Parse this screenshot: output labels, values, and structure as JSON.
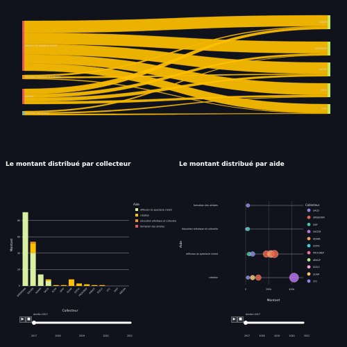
{
  "sankey": {
    "sources": [
      "diffusion du spectacle vivant",
      "éducation artistique et culturelle",
      "création",
      "formation des artistes"
    ],
    "source_colors": [
      "#e15759",
      "#f28e2b",
      "#e15759",
      "#76b7b2"
    ],
    "targets": [
      "ADAMI",
      "SPEDIDAM",
      "SACEM",
      "SACD",
      "SCPP"
    ],
    "target_colors": [
      "#c5e85d",
      "#c5e85d",
      "#c5e85d",
      "#c5e85d",
      "#c5e85d"
    ],
    "flows": [
      {
        "from": 0,
        "to": 0,
        "value": 30
      },
      {
        "from": 0,
        "to": 1,
        "value": 28
      },
      {
        "from": 0,
        "to": 2,
        "value": 26
      },
      {
        "from": 0,
        "to": 3,
        "value": 22
      },
      {
        "from": 0,
        "to": 4,
        "value": 18
      },
      {
        "from": 1,
        "to": 0,
        "value": 2
      },
      {
        "from": 1,
        "to": 2,
        "value": 2
      },
      {
        "from": 1,
        "to": 4,
        "value": 1
      },
      {
        "from": 2,
        "to": 0,
        "value": 6
      },
      {
        "from": 2,
        "to": 1,
        "value": 4
      },
      {
        "from": 2,
        "to": 2,
        "value": 4
      },
      {
        "from": 2,
        "to": 3,
        "value": 3
      },
      {
        "from": 3,
        "to": 1,
        "value": 1
      },
      {
        "from": 3,
        "to": 3,
        "value": 1
      },
      {
        "from": 3,
        "to": 4,
        "value": 1
      }
    ],
    "link_color": "#ffc000"
  },
  "left_chart": {
    "title": "Le montant distribué par collecteur",
    "ylabel": "Montant",
    "xlabel": "Collecteur",
    "legend_title": "Aide",
    "legend": [
      {
        "name": "diffusion du spectacle vivant",
        "color": "#d9f0a3"
      },
      {
        "name": "création",
        "color": "#ffc000"
      },
      {
        "name": "éducation artistique et culturelle",
        "color": "#f28e2b"
      },
      {
        "name": "formation des artistes",
        "color": "#e15759"
      }
    ],
    "y_ticks": [
      "0",
      "20",
      "40",
      "60",
      "80"
    ],
    "slider_label": "Année=2017",
    "slider_ticks": [
      "2017",
      "2018",
      "2019",
      "2020",
      "2021"
    ]
  },
  "right_chart": {
    "title": "Le montant distribué par aide",
    "ylabel": "Aide",
    "xlabel": "Montant",
    "legend_title": "Collecteur",
    "categories": [
      "formation des artistes",
      "éducation artistique et culturelle",
      "diffusion du spectacle vivant",
      "création"
    ],
    "x_ticks": [
      "0",
      "200k",
      "400k"
    ],
    "legend": [
      {
        "name": "SACD",
        "color": "#8c86e8"
      },
      {
        "name": "SPEDIDAM",
        "color": "#e8654a"
      },
      {
        "name": "SAIF",
        "color": "#3ec9a7"
      },
      {
        "name": "SACEM",
        "color": "#b774e8"
      },
      {
        "name": "ADAMI",
        "color": "#f39c5b"
      },
      {
        "name": "SOFIA",
        "color": "#3ad6e8"
      },
      {
        "name": "PROCIREP",
        "color": "#f06f96"
      },
      {
        "name": "ARAGP",
        "color": "#b8e58a"
      },
      {
        "name": "SCELF",
        "color": "#f7a3d6"
      },
      {
        "name": "SCAM",
        "color": "#f7c76b"
      },
      {
        "name": "CFC",
        "color": "#8c86e8"
      }
    ],
    "slider_label": "Année=2017",
    "slider_ticks": [
      "2017",
      "2018",
      "2019",
      "2020",
      "2021"
    ]
  },
  "chart_data": [
    {
      "type": "bar",
      "title": "Le montant distribué par collecteur",
      "xlabel": "Collecteur",
      "ylabel": "Montant",
      "ylim": [
        0,
        100
      ],
      "categories": [
        "SPEDIDAM",
        "SACEM",
        "ADAMI",
        "SACD",
        "SCPP",
        "SPPF",
        "SCAM",
        "SOFIA",
        "PROCIREP",
        "ARAGP",
        "SCELF",
        "CFC",
        "SAIF",
        "ANGOA"
      ],
      "series": [
        {
          "name": "diffusion du spectacle vivant",
          "values": [
            90,
            40,
            14,
            6,
            0,
            0,
            0,
            0,
            0,
            0,
            0,
            0,
            0,
            0
          ]
        },
        {
          "name": "création",
          "values": [
            0,
            12,
            0,
            2,
            1,
            1,
            8,
            3,
            2,
            1,
            1,
            0,
            0,
            0
          ]
        },
        {
          "name": "éducation artistique et culturelle",
          "values": [
            0,
            2,
            0,
            0,
            0,
            0,
            0,
            0,
            0,
            0,
            0,
            0,
            0,
            0
          ]
        },
        {
          "name": "formation des artistes",
          "values": [
            0,
            0,
            0,
            0,
            0,
            0,
            0,
            0,
            0,
            0,
            0,
            0,
            0,
            0
          ]
        }
      ]
    },
    {
      "type": "scatter",
      "title": "Le montant distribué par aide",
      "xlabel": "Montant",
      "ylabel": "Aide",
      "xlim": [
        0,
        500000
      ],
      "categories": [
        "formation des artistes",
        "éducation artistique et culturelle",
        "diffusion du spectacle vivant",
        "création"
      ],
      "points": [
        {
          "cat": "formation des artistes",
          "x": 20000,
          "collector": "SACD"
        },
        {
          "cat": "éducation artistique et culturelle",
          "x": 10000,
          "collector": "SACD"
        },
        {
          "cat": "éducation artistique et culturelle",
          "x": 20000,
          "collector": "SAIF"
        },
        {
          "cat": "diffusion du spectacle vivant",
          "x": 30000,
          "collector": "SAIF"
        },
        {
          "cat": "diffusion du spectacle vivant",
          "x": 60000,
          "collector": "SACD"
        },
        {
          "cat": "diffusion du spectacle vivant",
          "x": 180000,
          "collector": "SPEDIDAM"
        },
        {
          "cat": "diffusion du spectacle vivant",
          "x": 220000,
          "collector": "ADAMI"
        },
        {
          "cat": "diffusion du spectacle vivant",
          "x": 250000,
          "collector": "SPEDIDAM"
        },
        {
          "cat": "création",
          "x": 20000,
          "collector": "SACD"
        },
        {
          "cat": "création",
          "x": 60000,
          "collector": "SCAM"
        },
        {
          "cat": "création",
          "x": 110000,
          "collector": "SPEDIDAM"
        },
        {
          "cat": "création",
          "x": 420000,
          "collector": "SACEM"
        }
      ]
    }
  ]
}
